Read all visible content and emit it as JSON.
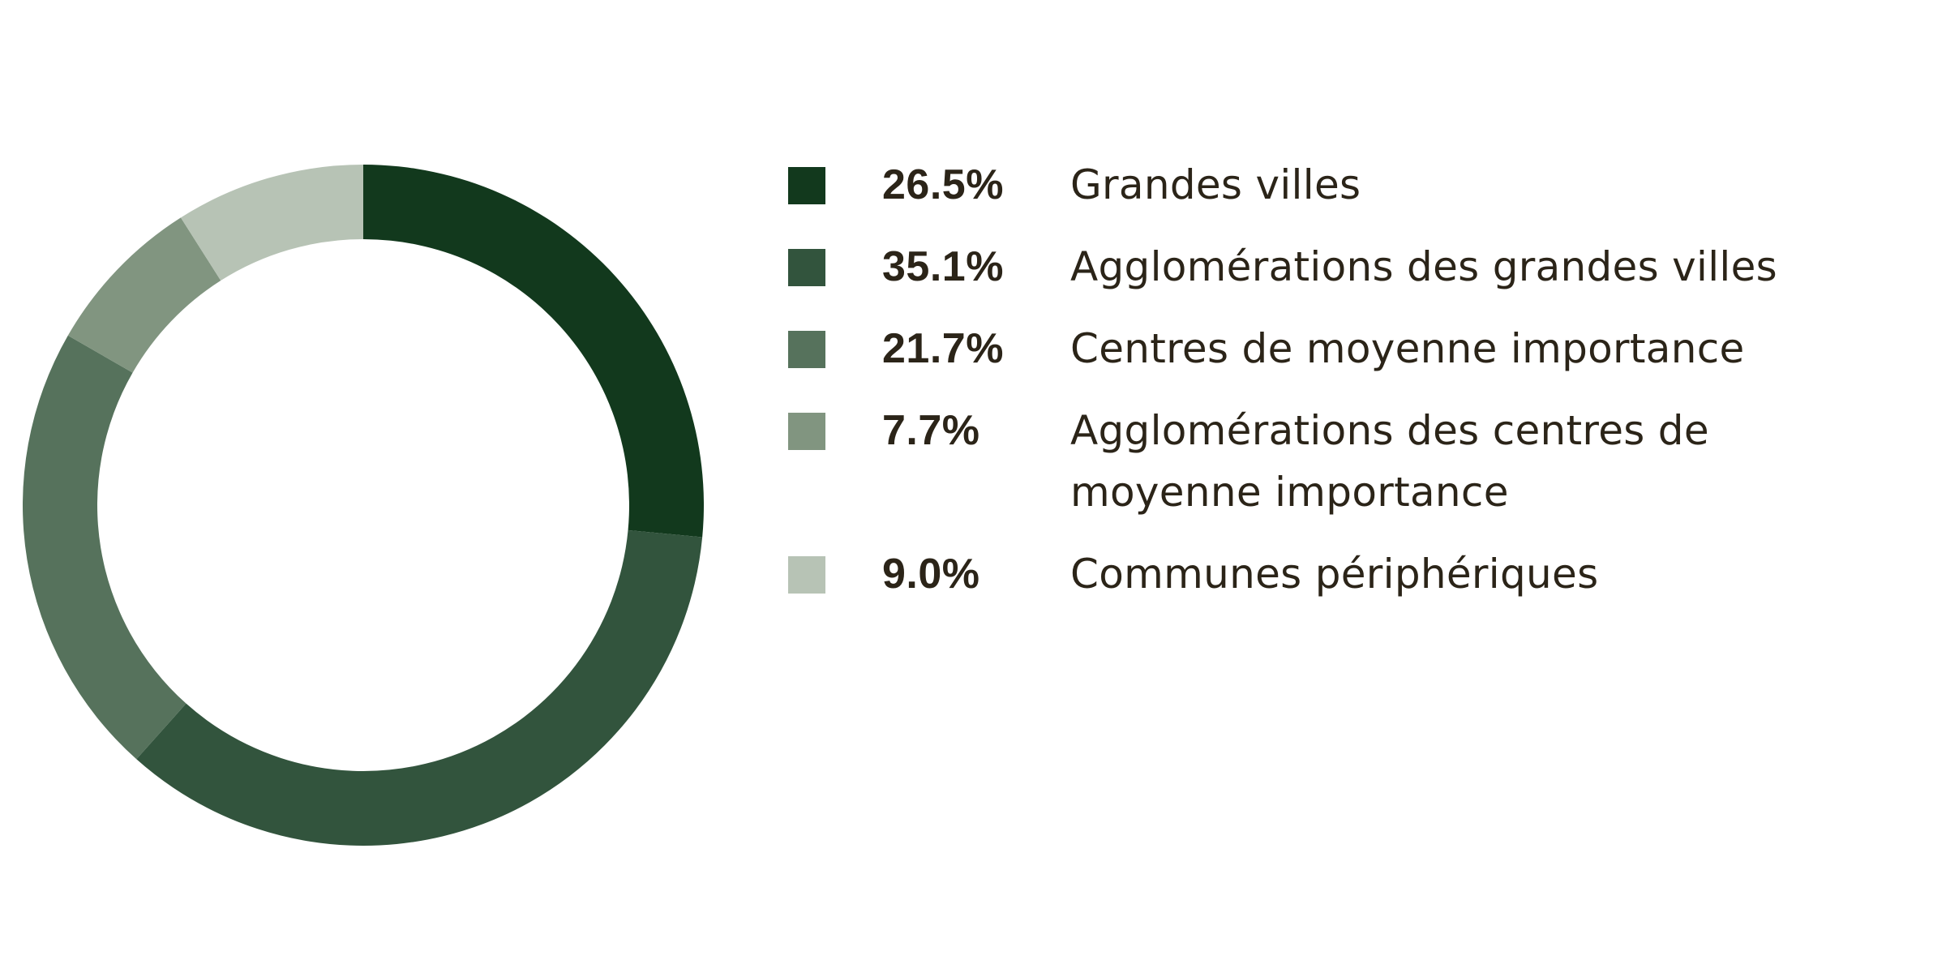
{
  "chart_data": {
    "type": "pie",
    "variant": "donut",
    "slices": [
      {
        "label": "Grandes villes",
        "value": 26.5,
        "value_label": "26.5%",
        "color": "#12391d"
      },
      {
        "label": "Agglomérations des grandes villes",
        "value": 35.1,
        "value_label": "35.1%",
        "color": "#32543d"
      },
      {
        "label": "Centres de moyenne importance",
        "value": 21.7,
        "value_label": "21.7%",
        "color": "#56725c"
      },
      {
        "label": "Agglomérations des centres de moyenne importance",
        "value": 7.7,
        "value_label": "7.7%",
        "color": "#819580"
      },
      {
        "label": "Communes périphériques",
        "value": 9.0,
        "value_label": "9.0%",
        "color": "#b7c3b5"
      }
    ],
    "legend_position": "right"
  }
}
